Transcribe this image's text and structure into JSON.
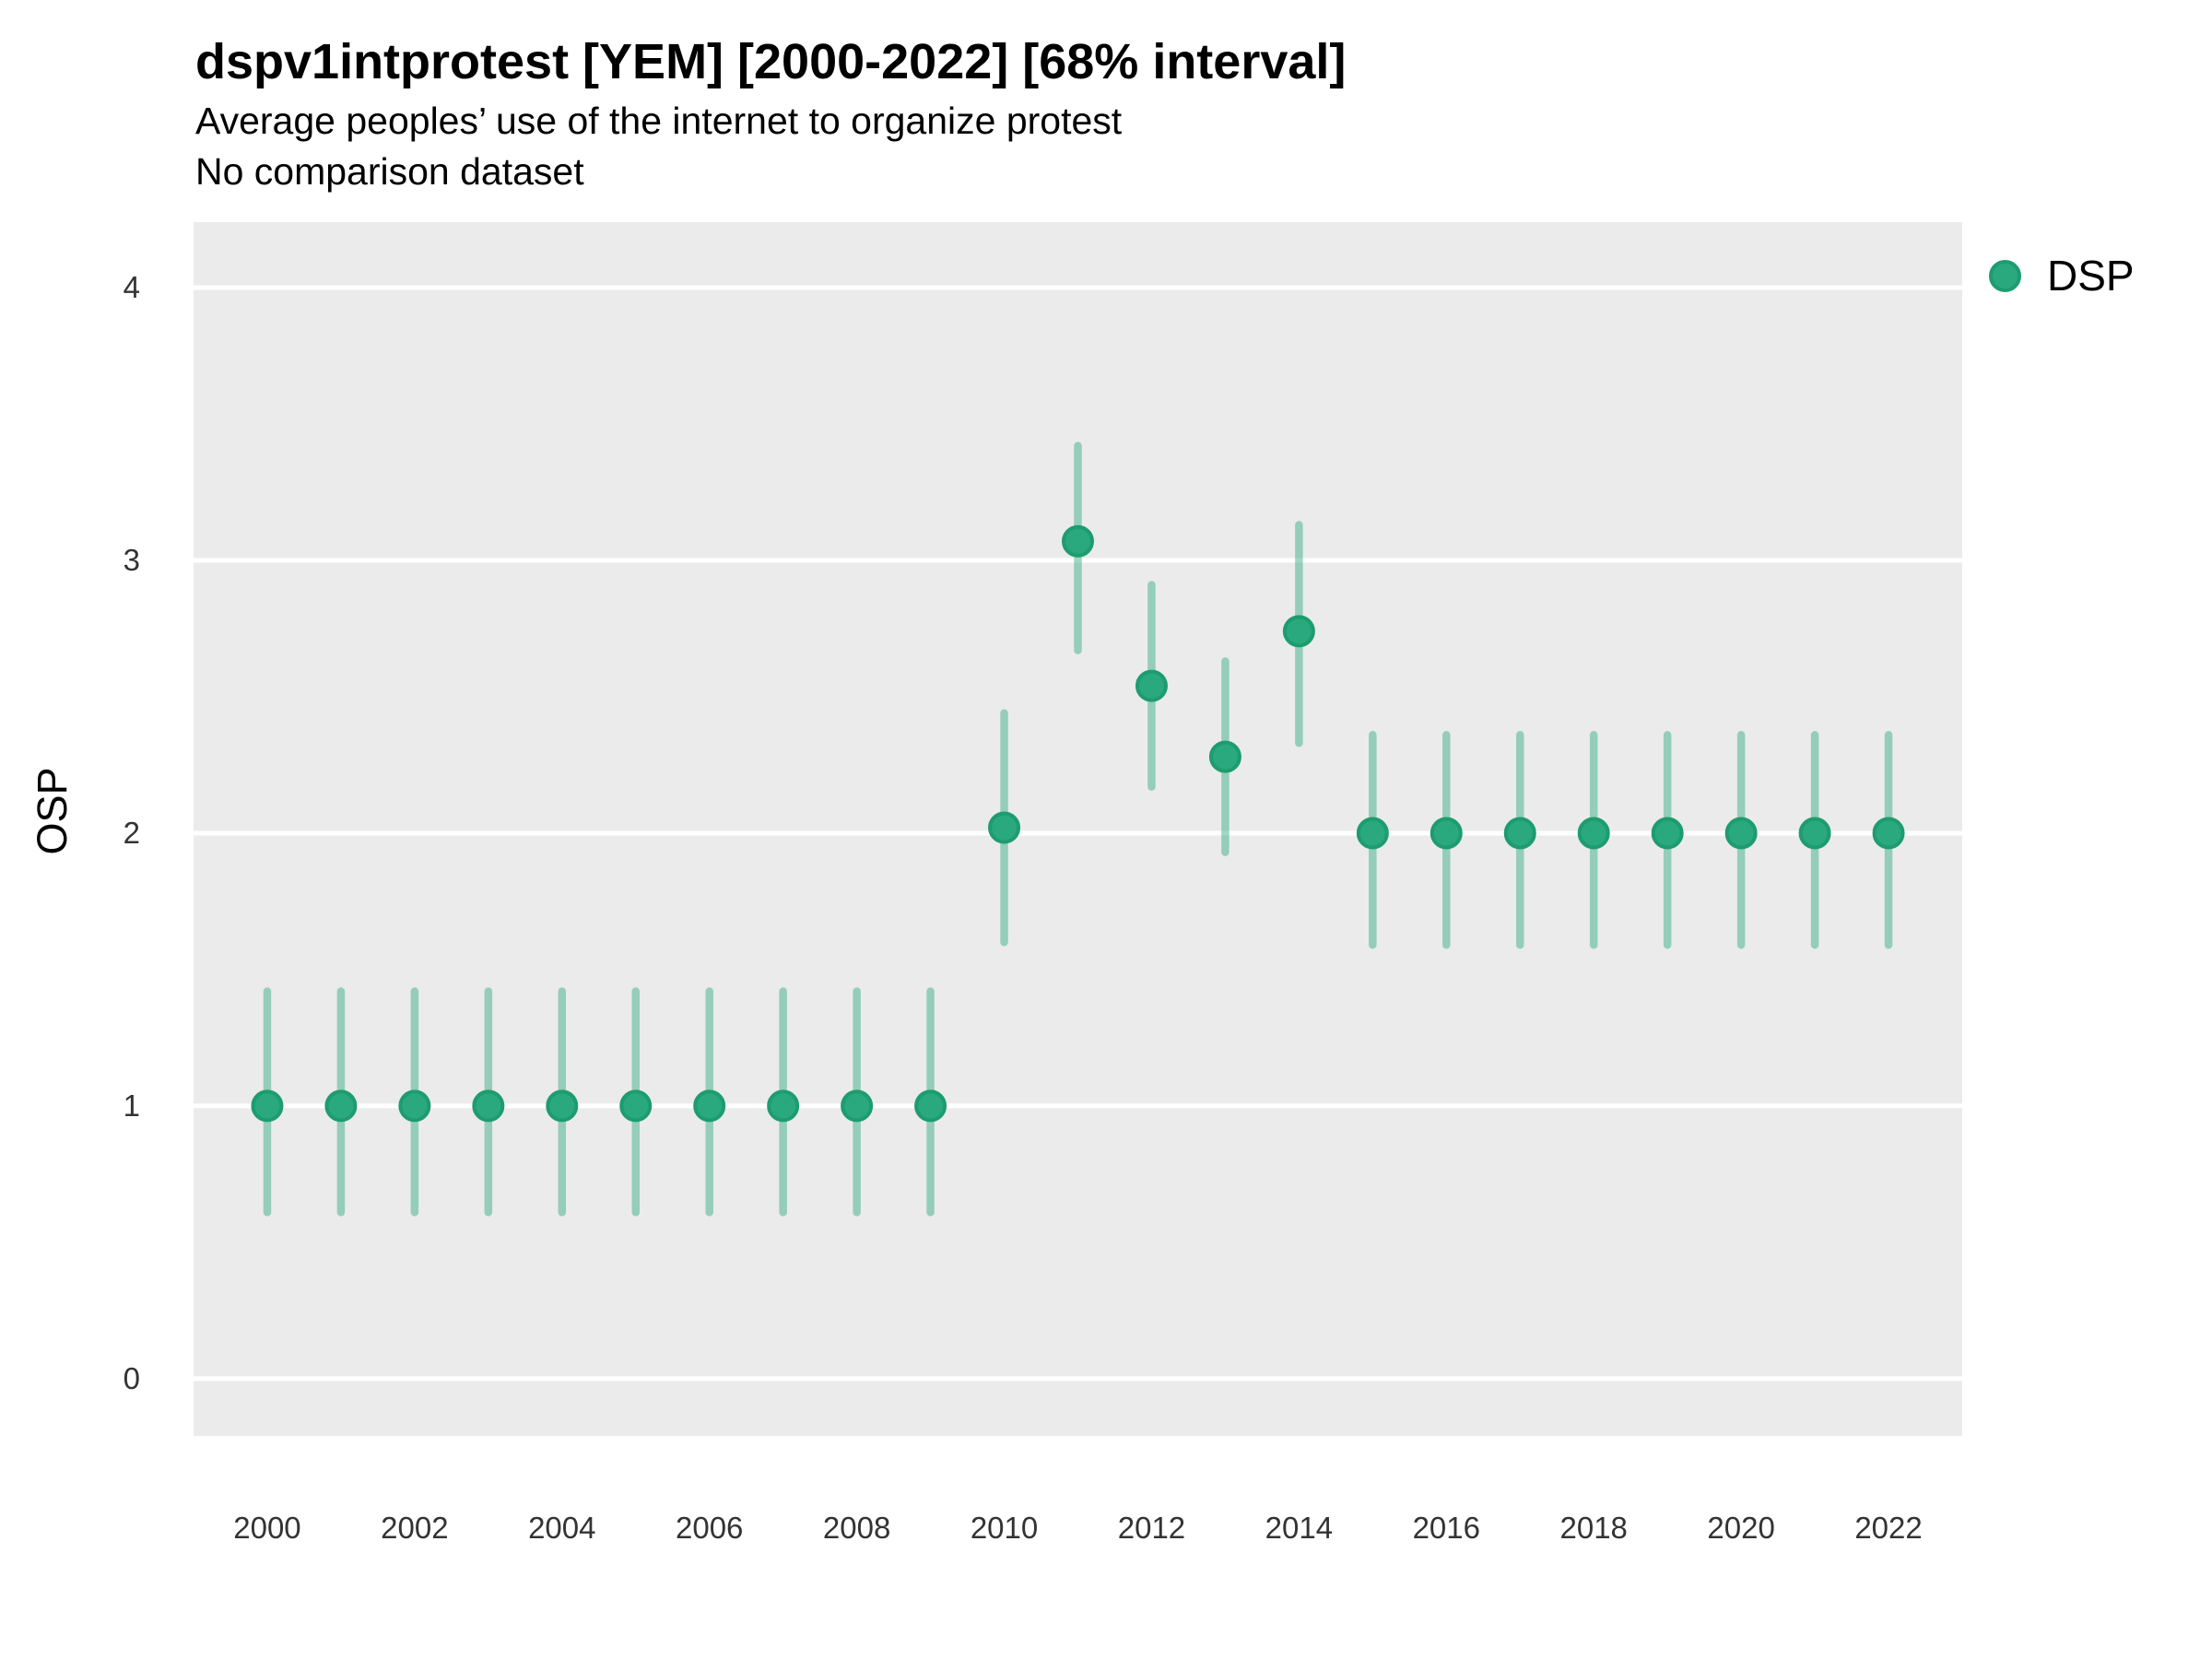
{
  "header": {
    "title": "dspv1intprotest [YEM] [2000-2022] [68% interval]",
    "subtitle": "Average peoples’ use of the internet to organize protest",
    "note": "No comparison dataset"
  },
  "legend": {
    "label": "DSP"
  },
  "axes": {
    "y_title": "OSP"
  },
  "chart_data": {
    "type": "scatter",
    "title": "dspv1intprotest [YEM] [2000-2022] [68% interval]",
    "subtitle": "Average peoples’ use of the internet to organize protest",
    "note": "No comparison dataset",
    "xlabel": "",
    "ylabel": "OSP",
    "interval_level": "68%",
    "legend_position": "right-top",
    "grid": "horizontal-major-only",
    "x": [
      2000,
      2001,
      2002,
      2003,
      2004,
      2005,
      2006,
      2007,
      2008,
      2009,
      2010,
      2011,
      2012,
      2013,
      2014,
      2015,
      2016,
      2017,
      2018,
      2019,
      2020,
      2021,
      2022
    ],
    "series": [
      {
        "name": "DSP",
        "values": [
          1.0,
          1.0,
          1.0,
          1.0,
          1.0,
          1.0,
          1.0,
          1.0,
          1.0,
          1.0,
          2.02,
          3.07,
          2.54,
          2.28,
          2.74,
          2.0,
          2.0,
          2.0,
          2.0,
          2.0,
          2.0,
          2.0,
          2.0
        ],
        "interval_low": [
          0.61,
          0.61,
          0.61,
          0.61,
          0.61,
          0.61,
          0.61,
          0.61,
          0.61,
          0.61,
          1.6,
          2.67,
          2.17,
          1.93,
          2.33,
          1.59,
          1.59,
          1.59,
          1.59,
          1.59,
          1.59,
          1.59,
          1.59
        ],
        "interval_high": [
          1.42,
          1.42,
          1.42,
          1.42,
          1.42,
          1.42,
          1.42,
          1.42,
          1.42,
          1.42,
          2.44,
          3.42,
          2.91,
          2.63,
          3.13,
          2.36,
          2.36,
          2.36,
          2.36,
          2.36,
          2.36,
          2.36,
          2.36
        ]
      }
    ],
    "xticks": [
      2000,
      2002,
      2004,
      2006,
      2008,
      2010,
      2012,
      2014,
      2016,
      2018,
      2020,
      2022
    ],
    "yticks": [
      0,
      1,
      2,
      3,
      4
    ],
    "xlim": [
      1999,
      2023
    ],
    "ylim": [
      -0.21,
      4.24
    ],
    "colors": {
      "point_fill": "#2aa87e",
      "point_stroke": "#1d9c6f",
      "interval": "rgba(42,168,126,0.45)",
      "panel_background": "#ebebeb",
      "gridline": "#ffffff",
      "text": "#000000",
      "tick_text": "#333333"
    }
  }
}
